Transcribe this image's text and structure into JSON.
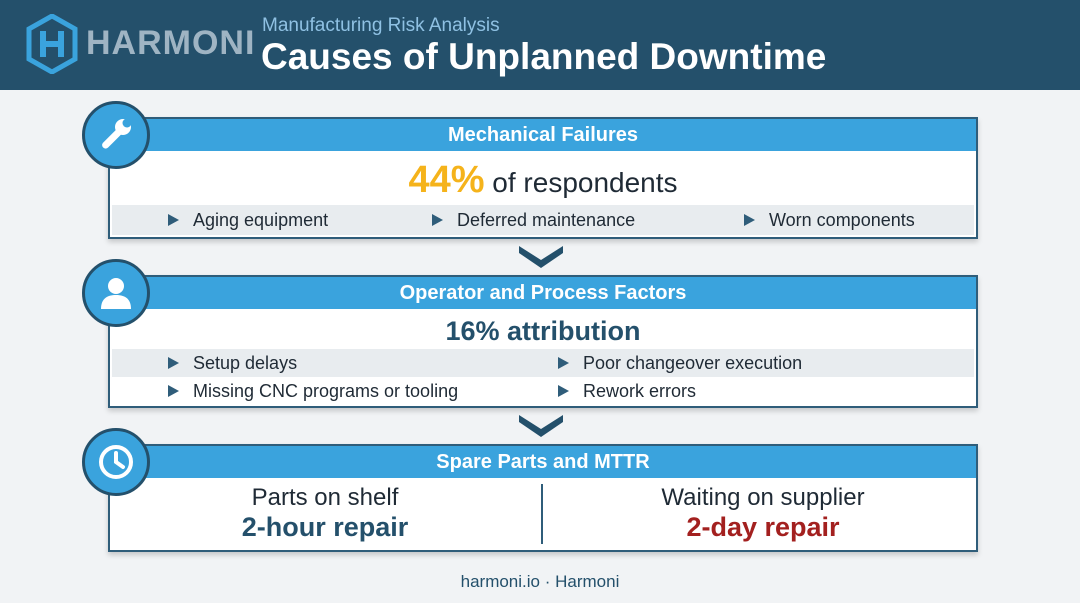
{
  "header": {
    "brand": "HARMONI",
    "subtitle": "Manufacturing Risk Analysis",
    "title": "Causes of Unplanned Downtime",
    "logo_icon": "harmoni-logo-icon"
  },
  "sections": {
    "mechanical": {
      "title": "Mechanical Failures",
      "icon": "wrench-icon",
      "percent": "44%",
      "percent_suffix": "of respondents",
      "bullets": [
        "Aging equipment",
        "Deferred maintenance",
        "Worn components"
      ]
    },
    "operator": {
      "title": "Operator and Process Factors",
      "icon": "user-icon",
      "attribution": "16% attribution",
      "bullets": [
        "Setup delays",
        "Poor changeover execution",
        "Missing CNC programs or tooling",
        "Rework errors"
      ]
    },
    "spares": {
      "title": "Spare Parts and MTTR",
      "icon": "clock-icon",
      "left_label": "Parts on shelf",
      "left_value": "2-hour repair",
      "right_label": "Waiting on supplier",
      "right_value": "2-day repair"
    }
  },
  "footer": {
    "text": "harmoni.io · Harmoni"
  },
  "colors": {
    "header_bg": "#24506b",
    "accent_blue": "#3aa3dd",
    "highlight_yellow": "#f5b31b",
    "good_blue": "#24506b",
    "bad_red": "#a3201f"
  }
}
